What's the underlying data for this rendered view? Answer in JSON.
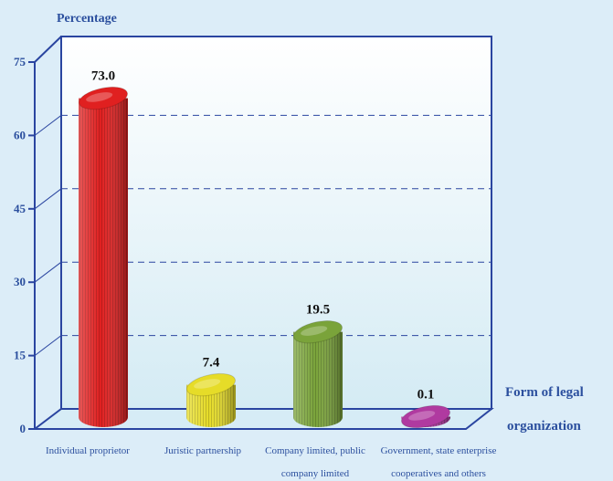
{
  "chart_data": {
    "type": "bar",
    "ylabel": "Percentage",
    "xlabel": "Form of legal organization",
    "xlabel_lines": [
      "Form of legal",
      "organization"
    ],
    "ylim": [
      0,
      75
    ],
    "yticks": [
      0,
      15,
      30,
      45,
      60,
      75
    ],
    "categories": [
      "Individual proprietor",
      "Juristic partnership",
      "Company limited, public company limited",
      "Government, state enterprise cooperatives and others"
    ],
    "category_lines": [
      [
        "Individual proprietor"
      ],
      [
        "Juristic partnership"
      ],
      [
        "Company limited, public",
        "company limited"
      ],
      [
        "Government, state enterprise",
        "cooperatives and others"
      ]
    ],
    "values": [
      73.0,
      7.4,
      19.5,
      0.1
    ],
    "value_labels": [
      "73.0",
      "7.4",
      "19.5",
      "0.1"
    ],
    "colors": [
      "#e02020",
      "#e6dc28",
      "#7aa33a",
      "#b03aa0"
    ],
    "grid": true,
    "grid_style": "dashed"
  }
}
